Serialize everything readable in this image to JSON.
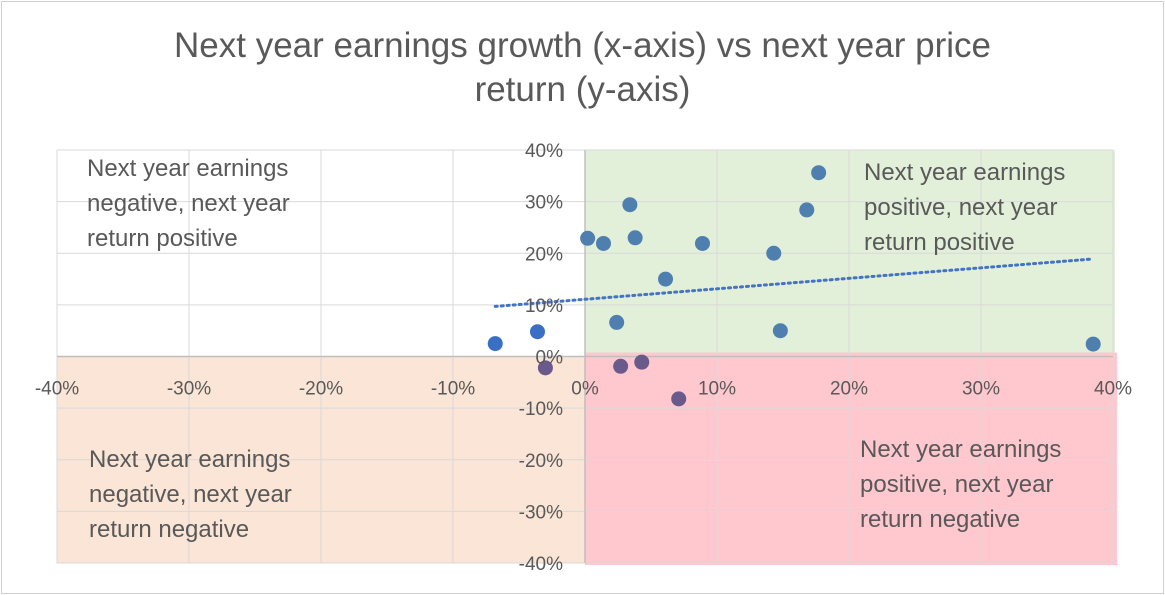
{
  "chart_data": {
    "type": "scatter",
    "title": [
      "Next year earnings growth (x-axis) vs next year price",
      "return (y-axis)"
    ],
    "xlim": [
      -0.4,
      0.4
    ],
    "ylim": [
      -0.4,
      0.4
    ],
    "x_ticks": [
      "-40%",
      "-30%",
      "-20%",
      "-10%",
      "0%",
      "10%",
      "20%",
      "30%",
      "40%"
    ],
    "y_ticks": [
      "40%",
      "30%",
      "20%",
      "10%",
      "0%",
      "-10%",
      "-20%",
      "-30%",
      "-40%"
    ],
    "grid": true,
    "quadrants": [
      {
        "name": "top-left",
        "lines": [
          "Next year earnings",
          "negative, next year",
          "return positive"
        ],
        "color": "#ffffff"
      },
      {
        "name": "top-right",
        "lines": [
          "Next year earnings",
          "positive, next year",
          "return positive"
        ],
        "color": "#e2f0d9"
      },
      {
        "name": "bottom-left",
        "lines": [
          "Next year earnings",
          "negative, next year",
          "return negative"
        ],
        "color": "#fbe5d6"
      },
      {
        "name": "bottom-right",
        "lines": [
          "Next year earnings",
          "positive, next year",
          "return negative"
        ],
        "color": "#ffc7ce"
      }
    ],
    "points": [
      {
        "x": -0.068,
        "y": 0.025
      },
      {
        "x": -0.036,
        "y": 0.048
      },
      {
        "x": -0.03,
        "y": -0.022
      },
      {
        "x": 0.002,
        "y": 0.229
      },
      {
        "x": 0.014,
        "y": 0.219
      },
      {
        "x": 0.024,
        "y": 0.066
      },
      {
        "x": 0.027,
        "y": -0.019
      },
      {
        "x": 0.034,
        "y": 0.294
      },
      {
        "x": 0.038,
        "y": 0.23
      },
      {
        "x": 0.043,
        "y": -0.011
      },
      {
        "x": 0.061,
        "y": 0.15
      },
      {
        "x": 0.071,
        "y": -0.082
      },
      {
        "x": 0.089,
        "y": 0.219
      },
      {
        "x": 0.143,
        "y": 0.2
      },
      {
        "x": 0.148,
        "y": 0.05
      },
      {
        "x": 0.168,
        "y": 0.284
      },
      {
        "x": 0.177,
        "y": 0.356
      },
      {
        "x": 0.385,
        "y": 0.024
      }
    ],
    "trendline": {
      "type": "linear",
      "style": "dotted",
      "from": [
        -0.068,
        0.097
      ],
      "to": [
        0.385,
        0.189
      ]
    },
    "colors": {
      "point": "#4f7faf",
      "point_negative_x": "#3a6fc4",
      "point_negative_y": "#6a5a8c",
      "trendline": "#4472c4",
      "grid": "#d9d9d9",
      "axis": "#bfbfbf"
    }
  }
}
